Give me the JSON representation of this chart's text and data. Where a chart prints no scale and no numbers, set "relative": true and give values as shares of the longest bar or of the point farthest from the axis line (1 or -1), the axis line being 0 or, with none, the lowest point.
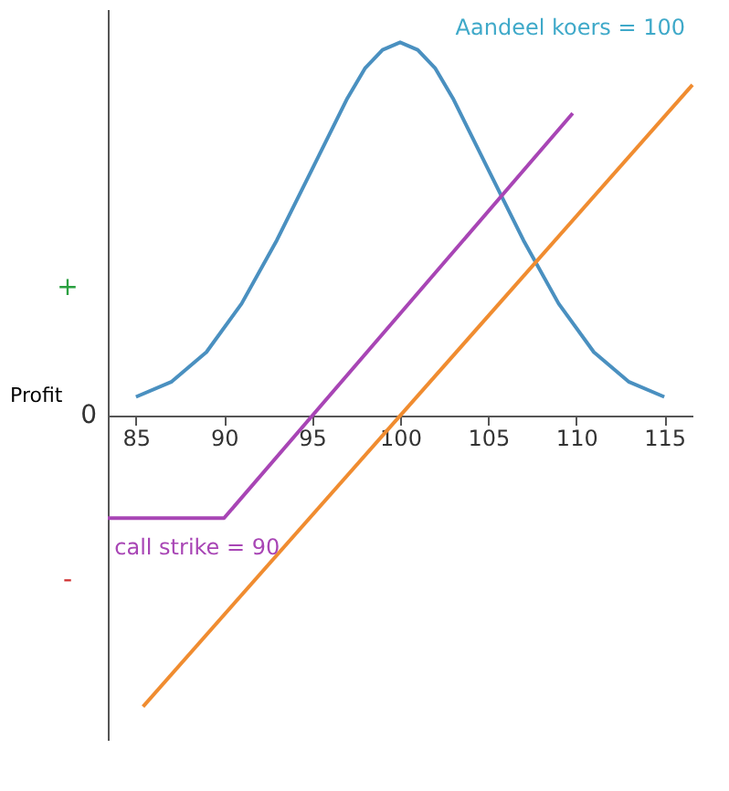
{
  "chart_data": {
    "type": "line",
    "relative": true,
    "ylabel": "Profit",
    "xlim": [
      83.4,
      116.6
    ],
    "xticks": [
      85,
      90,
      95,
      100,
      105,
      110,
      115
    ],
    "grid": false,
    "series": [
      {
        "color": "#4a90c0",
        "x": [
          85,
          87,
          89,
          91,
          93,
          95,
          97,
          98,
          99,
          100,
          101,
          102,
          103,
          105,
          107,
          109,
          111,
          113,
          115
        ],
        "values": [
          0.05,
          0.09,
          0.17,
          0.3,
          0.47,
          0.66,
          0.85,
          0.93,
          0.98,
          1.0,
          0.98,
          0.93,
          0.85,
          0.66,
          0.47,
          0.3,
          0.17,
          0.09,
          0.05
        ]
      },
      {
        "color": "#a845b5",
        "x": [
          83.4,
          90,
          109.8
        ],
        "values": [
          -0.275,
          -0.275,
          0.81
        ]
      },
      {
        "color": "#f08c30",
        "x": [
          85.4,
          116.6
        ],
        "values": [
          -0.78,
          0.886
        ]
      }
    ],
    "annotations": [
      "Aandeel koers = 100",
      {
        "text": "call strike = 90",
        "x": 90,
        "y": -0.275
      },
      "0",
      "+",
      "-"
    ]
  }
}
